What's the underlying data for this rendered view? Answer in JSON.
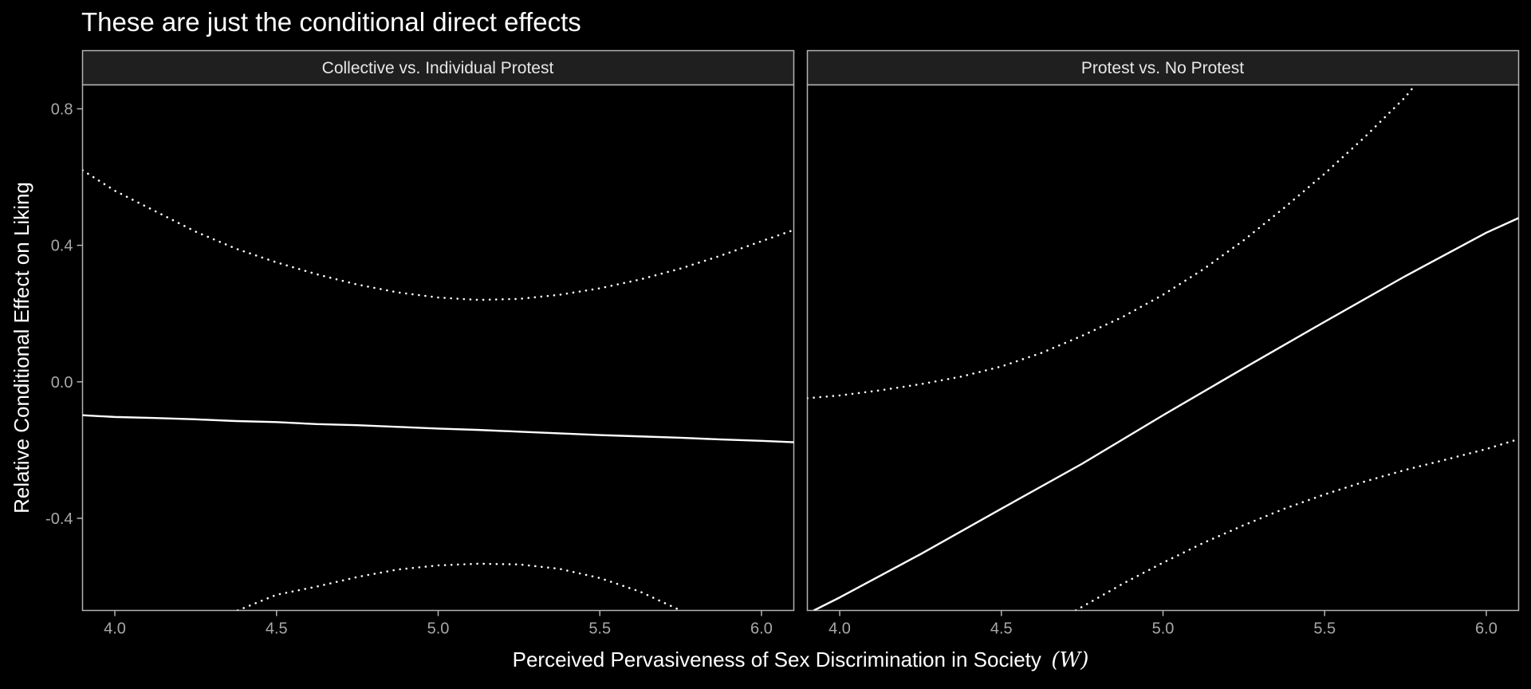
{
  "chart_data": {
    "type": "line",
    "title": "These are just the conditional direct effects",
    "xlabel": "Perceived Pervasiveness of Sex Discrimination in Society",
    "xlabel_variable": "(W)",
    "ylabel": "Relative Conditional Effect on Liking",
    "xlim": [
      3.9,
      6.1
    ],
    "ylim": [
      -0.67,
      0.87
    ],
    "x_ticks": [
      4.0,
      4.5,
      5.0,
      5.5,
      6.0
    ],
    "x_tick_labels": [
      "4.0",
      "4.5",
      "5.0",
      "5.5",
      "6.0"
    ],
    "y_ticks": [
      -0.4,
      0.0,
      0.4,
      0.8
    ],
    "y_tick_labels": [
      "-0.4",
      "0.0",
      "0.4",
      "0.8"
    ],
    "colors": {
      "background": "#000000",
      "strip": "#1f1f1f",
      "border": "#b3b3b3",
      "line": "#ffffff",
      "tick": "#a8a8a8"
    },
    "panels": [
      {
        "strip_label": "Collective vs. Individual Protest",
        "series": [
          {
            "name": "estimate",
            "style": "solid",
            "x": [
              3.9,
              4.0,
              4.125,
              4.25,
              4.375,
              4.5,
              4.625,
              4.75,
              4.875,
              5.0,
              5.125,
              5.25,
              5.375,
              5.5,
              5.625,
              5.75,
              5.875,
              6.0,
              6.1
            ],
            "y": [
              -0.098,
              -0.103,
              -0.106,
              -0.11,
              -0.115,
              -0.118,
              -0.124,
              -0.127,
              -0.132,
              -0.137,
              -0.141,
              -0.146,
              -0.151,
              -0.156,
              -0.16,
              -0.164,
              -0.169,
              -0.173,
              -0.177
            ]
          },
          {
            "name": "upper CI",
            "style": "dotted",
            "x": [
              3.9,
              4.0,
              4.125,
              4.25,
              4.375,
              4.5,
              4.625,
              4.75,
              4.875,
              5.0,
              5.125,
              5.25,
              5.375,
              5.5,
              5.625,
              5.75,
              5.875,
              6.0,
              6.1
            ],
            "y": [
              0.62,
              0.56,
              0.5,
              0.44,
              0.39,
              0.35,
              0.315,
              0.285,
              0.262,
              0.247,
              0.24,
              0.243,
              0.255,
              0.274,
              0.3,
              0.332,
              0.37,
              0.412,
              0.445
            ]
          },
          {
            "name": "lower CI",
            "style": "dotted",
            "x": [
              4.38,
              4.5,
              4.625,
              4.75,
              4.875,
              5.0,
              5.125,
              5.25,
              5.375,
              5.5,
              5.625,
              5.75
            ],
            "y": [
              -0.67,
              -0.624,
              -0.6,
              -0.572,
              -0.55,
              -0.538,
              -0.533,
              -0.535,
              -0.548,
              -0.575,
              -0.615,
              -0.67
            ]
          }
        ]
      },
      {
        "strip_label": "Protest vs. No Protest",
        "series": [
          {
            "name": "estimate",
            "style": "solid",
            "x": [
              3.92,
              4.0,
              4.25,
              4.5,
              4.75,
              5.0,
              5.25,
              5.5,
              5.75,
              6.0,
              6.1
            ],
            "y": [
              -0.67,
              -0.632,
              -0.505,
              -0.372,
              -0.24,
              -0.098,
              0.04,
              0.176,
              0.31,
              0.437,
              0.48
            ]
          },
          {
            "name": "upper CI",
            "style": "dotted",
            "x": [
              3.9,
              4.0,
              4.125,
              4.25,
              4.375,
              4.5,
              4.625,
              4.75,
              4.875,
              5.0,
              5.125,
              5.25,
              5.375,
              5.5,
              5.625,
              5.75,
              5.78
            ],
            "y": [
              -0.048,
              -0.04,
              -0.025,
              -0.007,
              0.015,
              0.045,
              0.085,
              0.135,
              0.19,
              0.255,
              0.33,
              0.415,
              0.51,
              0.61,
              0.718,
              0.835,
              0.87
            ]
          },
          {
            "name": "lower CI",
            "style": "dotted",
            "x": [
              4.73,
              4.875,
              5.0,
              5.125,
              5.25,
              5.375,
              5.5,
              5.625,
              5.75,
              5.875,
              6.0,
              6.1
            ],
            "y": [
              -0.67,
              -0.592,
              -0.53,
              -0.472,
              -0.42,
              -0.372,
              -0.33,
              -0.292,
              -0.258,
              -0.228,
              -0.197,
              -0.168
            ]
          }
        ]
      }
    ]
  }
}
